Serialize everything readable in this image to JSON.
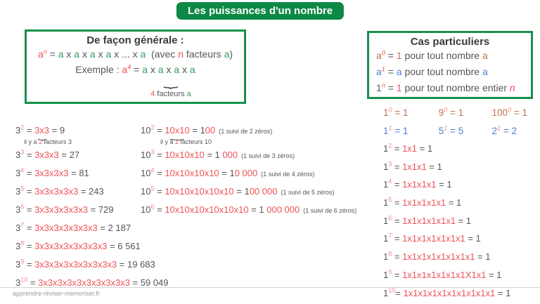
{
  "title": "Les puissances d'un nombre",
  "footer": "apprendre-réviser-memoriser.fr",
  "colors": {
    "green_bg": "#0d8945",
    "green_border": "#17904d",
    "green_text": "#33a05a",
    "red": "#ef5256",
    "light_red": "#f4898c",
    "orange": "#c0734e",
    "blue": "#4f82d8",
    "dark": "#55565a"
  },
  "general_box": {
    "title": "De façon générale :",
    "line1": [
      {
        "t": "a",
        "c": "red"
      },
      {
        "t": "n",
        "c": "red",
        "sup": 1,
        "i": 1
      },
      {
        "t": " = ",
        "c": "dark"
      },
      {
        "t": "a",
        "c": "green"
      },
      {
        "t": " x ",
        "c": "dark"
      },
      {
        "t": "a",
        "c": "green"
      },
      {
        "t": " x ",
        "c": "dark"
      },
      {
        "t": "a",
        "c": "green"
      },
      {
        "t": " x ",
        "c": "dark"
      },
      {
        "t": "a",
        "c": "green"
      },
      {
        "t": " x ... x ",
        "c": "dark"
      },
      {
        "t": "a",
        "c": "green"
      },
      {
        "t": "  (avec ",
        "c": "dark"
      },
      {
        "t": "n",
        "c": "red"
      },
      {
        "t": " facteurs ",
        "c": "dark"
      },
      {
        "t": "a",
        "c": "green"
      },
      {
        "t": ")",
        "c": "dark"
      }
    ],
    "line2": [
      {
        "t": "Exemple : ",
        "c": "dark"
      },
      {
        "t": "a",
        "c": "red"
      },
      {
        "t": "4",
        "c": "red",
        "sup": 1,
        "i": 1
      },
      {
        "t": " = ",
        "c": "dark"
      },
      {
        "t": "a",
        "c": "green"
      },
      {
        "t": " x ",
        "c": "dark"
      },
      {
        "t": "a",
        "c": "green"
      },
      {
        "t": " x ",
        "c": "dark"
      },
      {
        "t": "a",
        "c": "green"
      },
      {
        "t": " x ",
        "c": "dark"
      },
      {
        "t": "a",
        "c": "green"
      }
    ],
    "brace_label": [
      {
        "t": "4",
        "c": "red"
      },
      {
        "t": " facteurs ",
        "c": "dark"
      },
      {
        "t": "a",
        "c": "green"
      }
    ]
  },
  "special_box": {
    "title": "Cas particuliers",
    "lines": [
      [
        {
          "t": "a",
          "c": "orange"
        },
        {
          "t": "0",
          "c": "red",
          "sup": 1,
          "i": 1
        },
        {
          "t": " = ",
          "c": "dark"
        },
        {
          "t": "1",
          "c": "orange"
        },
        {
          "t": " pour tout nombre ",
          "c": "dark"
        },
        {
          "t": "a",
          "c": "orange"
        }
      ],
      [
        {
          "t": "a",
          "c": "blue"
        },
        {
          "t": "1",
          "c": "red",
          "sup": 1,
          "i": 1
        },
        {
          "t": " = ",
          "c": "dark"
        },
        {
          "t": "a",
          "c": "blue"
        },
        {
          "t": " pour tout nombre ",
          "c": "dark"
        },
        {
          "t": "a",
          "c": "blue"
        }
      ],
      [
        {
          "t": "1",
          "c": "dark"
        },
        {
          "t": "n",
          "c": "red",
          "sup": 1,
          "i": 1
        },
        {
          "t": " = ",
          "c": "dark"
        },
        {
          "t": "1",
          "c": "red"
        },
        {
          "t": " pour tout nombre entier ",
          "c": "dark"
        },
        {
          "t": "n",
          "c": "red",
          "i": 1
        }
      ]
    ]
  },
  "col3": {
    "first_row": {
      "pre": [
        {
          "t": "3",
          "c": "dark"
        },
        {
          "t": "2",
          "c": "lightred",
          "sup": 1
        },
        {
          "t": " = ",
          "c": "dark"
        }
      ],
      "braced": [
        {
          "t": "3x3",
          "c": "red"
        }
      ],
      "post": [
        {
          "t": " = 9",
          "c": "dark"
        }
      ]
    },
    "note": [
      {
        "t": "il y a ",
        "c": "dark",
        "s": 1
      },
      {
        "t": "2",
        "c": "red",
        "s": 1
      },
      {
        "t": " facteurs 3",
        "c": "dark",
        "s": 1
      }
    ],
    "rows": [
      [
        {
          "t": "3",
          "c": "dark"
        },
        {
          "t": "3",
          "c": "lightred",
          "sup": 1
        },
        {
          "t": " = ",
          "c": "dark"
        },
        {
          "t": "3x3x3",
          "c": "red"
        },
        {
          "t": " = 27",
          "c": "dark"
        }
      ],
      [
        {
          "t": "3",
          "c": "dark"
        },
        {
          "t": "4",
          "c": "lightred",
          "sup": 1
        },
        {
          "t": " = ",
          "c": "dark"
        },
        {
          "t": "3x3x3x3",
          "c": "red"
        },
        {
          "t": " = 81",
          "c": "dark"
        }
      ],
      [
        {
          "t": "3",
          "c": "dark"
        },
        {
          "t": "5",
          "c": "lightred",
          "sup": 1
        },
        {
          "t": " = ",
          "c": "dark"
        },
        {
          "t": "3x3x3x3x3",
          "c": "red"
        },
        {
          "t": " = 243",
          "c": "dark"
        }
      ],
      [
        {
          "t": "3",
          "c": "dark"
        },
        {
          "t": "6",
          "c": "lightred",
          "sup": 1
        },
        {
          "t": " = ",
          "c": "dark"
        },
        {
          "t": "3x3x3x3x3x3",
          "c": "red"
        },
        {
          "t": " = 729",
          "c": "dark"
        }
      ],
      [
        {
          "t": "3",
          "c": "dark"
        },
        {
          "t": "7",
          "c": "lightred",
          "sup": 1
        },
        {
          "t": " = ",
          "c": "dark"
        },
        {
          "t": "3x3x3x3x3x3x3",
          "c": "red"
        },
        {
          "t": " = 2 187",
          "c": "dark"
        }
      ],
      [
        {
          "t": "3",
          "c": "dark"
        },
        {
          "t": "8",
          "c": "lightred",
          "sup": 1
        },
        {
          "t": " = ",
          "c": "dark"
        },
        {
          "t": "3x3x3x3x3x3x3x3",
          "c": "red"
        },
        {
          "t": " = 6 561",
          "c": "dark"
        }
      ],
      [
        {
          "t": "3",
          "c": "dark"
        },
        {
          "t": "9",
          "c": "lightred",
          "sup": 1
        },
        {
          "t": " = ",
          "c": "dark"
        },
        {
          "t": "3x3x3x3x3x3x3x3x3",
          "c": "red"
        },
        {
          "t": " = 19 683",
          "c": "dark"
        }
      ],
      [
        {
          "t": "3",
          "c": "dark"
        },
        {
          "t": "10",
          "c": "lightred",
          "sup": 1
        },
        {
          "t": " = ",
          "c": "dark"
        },
        {
          "t": "3x3x3x3x3x3x3x3x3x3",
          "c": "red"
        },
        {
          "t": " = 59 049",
          "c": "dark"
        }
      ]
    ]
  },
  "col10": {
    "first_row": {
      "pre": [
        {
          "t": "10",
          "c": "dark"
        },
        {
          "t": "2",
          "c": "lightred",
          "sup": 1
        },
        {
          "t": " = ",
          "c": "dark"
        }
      ],
      "braced": [
        {
          "t": "10x10",
          "c": "red"
        }
      ],
      "post": [
        {
          "t": " = ",
          "c": "dark"
        },
        {
          "t": "1",
          "c": "dark"
        },
        {
          "t": "00",
          "c": "red"
        },
        {
          "t": "  (1 suivi de 2 zéros)",
          "c": "dark",
          "s": 1
        }
      ]
    },
    "note": [
      {
        "t": "il y a ",
        "c": "dark",
        "s": 1
      },
      {
        "t": "2",
        "c": "red",
        "s": 1
      },
      {
        "t": " facteurs 10",
        "c": "dark",
        "s": 1
      }
    ],
    "rows": [
      [
        {
          "t": "10",
          "c": "dark"
        },
        {
          "t": "3",
          "c": "lightred",
          "sup": 1
        },
        {
          "t": " = ",
          "c": "dark"
        },
        {
          "t": "10x10x10",
          "c": "red"
        },
        {
          "t": " = ",
          "c": "dark"
        },
        {
          "t": "1",
          "c": "dark"
        },
        {
          "t": " 000",
          "c": "red"
        },
        {
          "t": "  (1 suivi de 3 zéros)",
          "c": "dark",
          "s": 1
        }
      ],
      [
        {
          "t": "10",
          "c": "dark"
        },
        {
          "t": "4",
          "c": "lightred",
          "sup": 1
        },
        {
          "t": " = ",
          "c": "dark"
        },
        {
          "t": "10x10x10x10",
          "c": "red"
        },
        {
          "t": " = ",
          "c": "dark"
        },
        {
          "t": "1",
          "c": "dark"
        },
        {
          "t": "0 000",
          "c": "red"
        },
        {
          "t": "  (1 suivi de 4 zéros)",
          "c": "dark",
          "s": 1
        }
      ],
      [
        {
          "t": "10",
          "c": "dark"
        },
        {
          "t": "5",
          "c": "lightred",
          "sup": 1
        },
        {
          "t": " = ",
          "c": "dark"
        },
        {
          "t": "10x10x10x10x10",
          "c": "red"
        },
        {
          "t": " = ",
          "c": "dark"
        },
        {
          "t": "1",
          "c": "dark"
        },
        {
          "t": "00 000",
          "c": "red"
        },
        {
          "t": "  (1 suivi de 5 zéros)",
          "c": "dark",
          "s": 1
        }
      ],
      [
        {
          "t": "10",
          "c": "dark"
        },
        {
          "t": "6",
          "c": "lightred",
          "sup": 1
        },
        {
          "t": " = ",
          "c": "dark"
        },
        {
          "t": "10x10x10x10x10x10",
          "c": "red"
        },
        {
          "t": " = ",
          "c": "dark"
        },
        {
          "t": "1",
          "c": "dark"
        },
        {
          "t": " 000 000",
          "c": "red"
        },
        {
          "t": "  (1 suivi de 6 zéros)",
          "c": "dark",
          "s": 1
        }
      ]
    ]
  },
  "col1": {
    "zero_row": [
      [
        {
          "t": "1",
          "c": "orange"
        },
        {
          "t": "0",
          "c": "lightred",
          "sup": 1,
          "i": 1
        },
        {
          "t": " = 1",
          "c": "orange"
        }
      ],
      [
        {
          "t": "9",
          "c": "orange"
        },
        {
          "t": "0",
          "c": "lightred",
          "sup": 1,
          "i": 1
        },
        {
          "t": " = 1",
          "c": "orange"
        }
      ],
      [
        {
          "t": "100",
          "c": "orange"
        },
        {
          "t": "0",
          "c": "lightred",
          "sup": 1,
          "i": 1
        },
        {
          "t": " = 1",
          "c": "orange"
        }
      ]
    ],
    "one_row": [
      [
        {
          "t": "1",
          "c": "blue"
        },
        {
          "t": "1",
          "c": "lightred",
          "sup": 1,
          "i": 1
        },
        {
          "t": " = 1",
          "c": "blue"
        }
      ],
      [
        {
          "t": "5",
          "c": "blue"
        },
        {
          "t": "1",
          "c": "lightred",
          "sup": 1,
          "i": 1
        },
        {
          "t": " = 5",
          "c": "blue"
        }
      ],
      [
        {
          "t": "2",
          "c": "blue"
        },
        {
          "t": "1",
          "c": "lightred",
          "sup": 1,
          "i": 1
        },
        {
          "t": " = 2",
          "c": "blue"
        }
      ]
    ],
    "rows": [
      [
        {
          "t": "1",
          "c": "dark"
        },
        {
          "t": "2",
          "c": "lightred",
          "sup": 1
        },
        {
          "t": " = ",
          "c": "dark"
        },
        {
          "t": "1x1",
          "c": "red"
        },
        {
          "t": " = 1",
          "c": "dark"
        }
      ],
      [
        {
          "t": "1",
          "c": "dark"
        },
        {
          "t": "3",
          "c": "lightred",
          "sup": 1
        },
        {
          "t": " = ",
          "c": "dark"
        },
        {
          "t": "1x1x1",
          "c": "red"
        },
        {
          "t": " = 1",
          "c": "dark"
        }
      ],
      [
        {
          "t": "1",
          "c": "dark"
        },
        {
          "t": "4",
          "c": "lightred",
          "sup": 1
        },
        {
          "t": " = ",
          "c": "dark"
        },
        {
          "t": "1x1x1x1",
          "c": "red"
        },
        {
          "t": " = 1",
          "c": "dark"
        }
      ],
      [
        {
          "t": "1",
          "c": "dark"
        },
        {
          "t": "5",
          "c": "lightred",
          "sup": 1
        },
        {
          "t": " = ",
          "c": "dark"
        },
        {
          "t": "1x1x1x1x1",
          "c": "red"
        },
        {
          "t": " = 1",
          "c": "dark"
        }
      ],
      [
        {
          "t": "1",
          "c": "dark"
        },
        {
          "t": "6",
          "c": "lightred",
          "sup": 1
        },
        {
          "t": " = ",
          "c": "dark"
        },
        {
          "t": "1x1x1x1x1x1",
          "c": "red"
        },
        {
          "t": " = 1",
          "c": "dark"
        }
      ],
      [
        {
          "t": "1",
          "c": "dark"
        },
        {
          "t": "7",
          "c": "lightred",
          "sup": 1
        },
        {
          "t": " = ",
          "c": "dark"
        },
        {
          "t": "1x1x1x1x1x1x1",
          "c": "red"
        },
        {
          "t": " = 1",
          "c": "dark"
        }
      ],
      [
        {
          "t": "1",
          "c": "dark"
        },
        {
          "t": "8",
          "c": "lightred",
          "sup": 1
        },
        {
          "t": " = ",
          "c": "dark"
        },
        {
          "t": "1x1x1x1x1x1x1x1",
          "c": "red"
        },
        {
          "t": " = 1",
          "c": "dark"
        }
      ],
      [
        {
          "t": "1",
          "c": "dark"
        },
        {
          "t": "9",
          "c": "lightred",
          "sup": 1
        },
        {
          "t": " = ",
          "c": "dark"
        },
        {
          "t": "1x1x1x1x1x1x1X1x1",
          "c": "red"
        },
        {
          "t": " = 1",
          "c": "dark"
        }
      ],
      [
        {
          "t": "1",
          "c": "dark"
        },
        {
          "t": "10",
          "c": "lightred",
          "sup": 1
        },
        {
          "t": "= ",
          "c": "dark"
        },
        {
          "t": "1x1x1x1x1x1x1x1x1x1",
          "c": "red"
        },
        {
          "t": " = 1",
          "c": "dark"
        }
      ]
    ]
  }
}
